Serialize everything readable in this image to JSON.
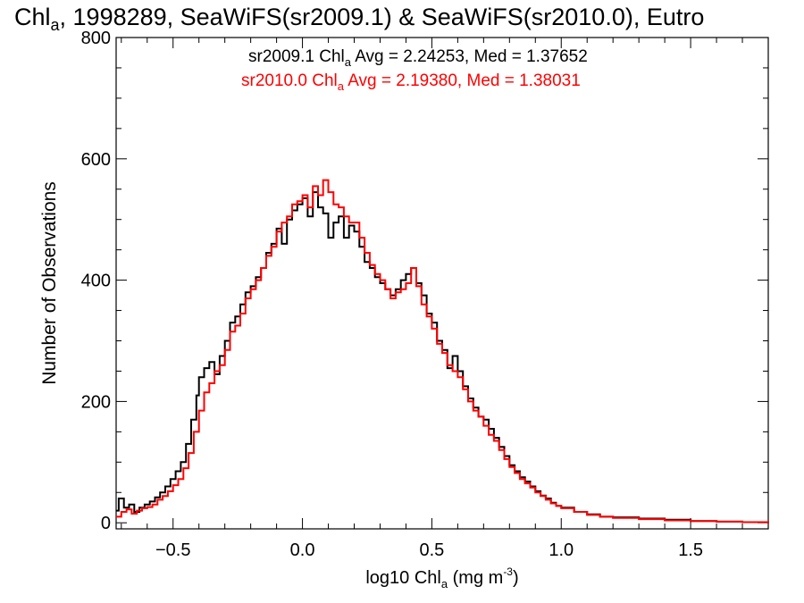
{
  "chart_data": {
    "type": "line",
    "title": {
      "pre": "Chl",
      "sub": "a",
      "post": ", 1998289, SeaWiFS(sr2009.1) & SeaWiFS(sr2010.0), Eutro"
    },
    "xlabel": {
      "pre": "log10 Chl",
      "sub": "a",
      "mid": " (mg m",
      "sup": "-3",
      "post": ")"
    },
    "ylabel": "Number of Observations",
    "xlim": [
      -0.72,
      1.8
    ],
    "ylim": [
      -10,
      800
    ],
    "xticks": [
      {
        "value": -0.5,
        "label": "−0.5"
      },
      {
        "value": 0.0,
        "label": "0.0"
      },
      {
        "value": 0.5,
        "label": "0.5"
      },
      {
        "value": 1.0,
        "label": "1.0"
      },
      {
        "value": 1.5,
        "label": "1.5"
      }
    ],
    "yticks": [
      {
        "value": 0,
        "label": "0"
      },
      {
        "value": 200,
        "label": "200"
      },
      {
        "value": 400,
        "label": "400"
      },
      {
        "value": 600,
        "label": "600"
      },
      {
        "value": 800,
        "label": "800"
      }
    ],
    "grid": false,
    "legend_position": "top-center",
    "series": [
      {
        "name": "sr2009.1",
        "color": "#000000",
        "annotation": {
          "pre": "sr2009.1 Chl",
          "sub": "a",
          "post": " Avg = 2.24253, Med = 1.37652"
        },
        "points": [
          [
            -0.72,
            20
          ],
          [
            -0.71,
            40
          ],
          [
            -0.69,
            25
          ],
          [
            -0.67,
            30
          ],
          [
            -0.65,
            18
          ],
          [
            -0.63,
            25
          ],
          [
            -0.61,
            30
          ],
          [
            -0.59,
            35
          ],
          [
            -0.57,
            42
          ],
          [
            -0.55,
            50
          ],
          [
            -0.53,
            60
          ],
          [
            -0.51,
            72
          ],
          [
            -0.49,
            85
          ],
          [
            -0.47,
            100
          ],
          [
            -0.45,
            130
          ],
          [
            -0.43,
            170
          ],
          [
            -0.41,
            210
          ],
          [
            -0.4,
            240
          ],
          [
            -0.38,
            255
          ],
          [
            -0.36,
            265
          ],
          [
            -0.34,
            245
          ],
          [
            -0.32,
            275
          ],
          [
            -0.3,
            300
          ],
          [
            -0.28,
            330
          ],
          [
            -0.26,
            340
          ],
          [
            -0.24,
            360
          ],
          [
            -0.22,
            380
          ],
          [
            -0.2,
            390
          ],
          [
            -0.18,
            405
          ],
          [
            -0.16,
            420
          ],
          [
            -0.14,
            445
          ],
          [
            -0.12,
            460
          ],
          [
            -0.1,
            485
          ],
          [
            -0.08,
            460
          ],
          [
            -0.06,
            500
          ],
          [
            -0.04,
            515
          ],
          [
            -0.02,
            525
          ],
          [
            0.0,
            535
          ],
          [
            0.02,
            505
          ],
          [
            0.04,
            545
          ],
          [
            0.06,
            520
          ],
          [
            0.08,
            510
          ],
          [
            0.1,
            470
          ],
          [
            0.12,
            495
          ],
          [
            0.14,
            505
          ],
          [
            0.16,
            470
          ],
          [
            0.18,
            490
          ],
          [
            0.2,
            480
          ],
          [
            0.22,
            455
          ],
          [
            0.24,
            430
          ],
          [
            0.26,
            420
          ],
          [
            0.28,
            405
          ],
          [
            0.3,
            395
          ],
          [
            0.32,
            385
          ],
          [
            0.34,
            375
          ],
          [
            0.36,
            385
          ],
          [
            0.38,
            400
          ],
          [
            0.4,
            410
          ],
          [
            0.42,
            420
          ],
          [
            0.44,
            395
          ],
          [
            0.46,
            375
          ],
          [
            0.48,
            345
          ],
          [
            0.5,
            330
          ],
          [
            0.52,
            300
          ],
          [
            0.54,
            285
          ],
          [
            0.56,
            255
          ],
          [
            0.58,
            275
          ],
          [
            0.6,
            250
          ],
          [
            0.62,
            225
          ],
          [
            0.64,
            205
          ],
          [
            0.66,
            190
          ],
          [
            0.68,
            175
          ],
          [
            0.7,
            170
          ],
          [
            0.72,
            155
          ],
          [
            0.74,
            140
          ],
          [
            0.76,
            125
          ],
          [
            0.78,
            110
          ],
          [
            0.8,
            95
          ],
          [
            0.82,
            85
          ],
          [
            0.84,
            75
          ],
          [
            0.86,
            68
          ],
          [
            0.88,
            60
          ],
          [
            0.9,
            52
          ],
          [
            0.92,
            45
          ],
          [
            0.94,
            40
          ],
          [
            0.96,
            33
          ],
          [
            0.98,
            28
          ],
          [
            1.0,
            25
          ],
          [
            1.05,
            18
          ],
          [
            1.1,
            14
          ],
          [
            1.15,
            10
          ],
          [
            1.2,
            9
          ],
          [
            1.3,
            7
          ],
          [
            1.4,
            5
          ],
          [
            1.5,
            3
          ],
          [
            1.6,
            2
          ],
          [
            1.7,
            1
          ],
          [
            1.8,
            0
          ]
        ]
      },
      {
        "name": "sr2010.0",
        "color": "#ff0000",
        "annotation": {
          "pre": "sr2010.0 Chl",
          "sub": "a",
          "post": " Avg = 2.19380, Med = 1.38031"
        },
        "points": [
          [
            -0.72,
            10
          ],
          [
            -0.7,
            18
          ],
          [
            -0.68,
            22
          ],
          [
            -0.66,
            15
          ],
          [
            -0.64,
            20
          ],
          [
            -0.62,
            24
          ],
          [
            -0.6,
            26
          ],
          [
            -0.58,
            30
          ],
          [
            -0.56,
            38
          ],
          [
            -0.54,
            44
          ],
          [
            -0.52,
            52
          ],
          [
            -0.5,
            62
          ],
          [
            -0.48,
            72
          ],
          [
            -0.46,
            90
          ],
          [
            -0.44,
            115
          ],
          [
            -0.42,
            150
          ],
          [
            -0.4,
            185
          ],
          [
            -0.38,
            215
          ],
          [
            -0.36,
            230
          ],
          [
            -0.34,
            250
          ],
          [
            -0.32,
            260
          ],
          [
            -0.3,
            285
          ],
          [
            -0.28,
            315
          ],
          [
            -0.26,
            325
          ],
          [
            -0.24,
            345
          ],
          [
            -0.22,
            370
          ],
          [
            -0.2,
            385
          ],
          [
            -0.18,
            400
          ],
          [
            -0.16,
            420
          ],
          [
            -0.14,
            440
          ],
          [
            -0.12,
            455
          ],
          [
            -0.1,
            480
          ],
          [
            -0.08,
            495
          ],
          [
            -0.06,
            505
          ],
          [
            -0.04,
            525
          ],
          [
            -0.02,
            530
          ],
          [
            0.0,
            540
          ],
          [
            0.02,
            520
          ],
          [
            0.04,
            555
          ],
          [
            0.06,
            540
          ],
          [
            0.08,
            565
          ],
          [
            0.1,
            545
          ],
          [
            0.12,
            525
          ],
          [
            0.14,
            520
          ],
          [
            0.16,
            505
          ],
          [
            0.18,
            495
          ],
          [
            0.2,
            495
          ],
          [
            0.22,
            470
          ],
          [
            0.24,
            445
          ],
          [
            0.26,
            425
          ],
          [
            0.28,
            410
          ],
          [
            0.3,
            400
          ],
          [
            0.32,
            385
          ],
          [
            0.34,
            370
          ],
          [
            0.36,
            380
          ],
          [
            0.38,
            385
          ],
          [
            0.4,
            395
          ],
          [
            0.42,
            420
          ],
          [
            0.44,
            390
          ],
          [
            0.46,
            360
          ],
          [
            0.48,
            340
          ],
          [
            0.5,
            320
          ],
          [
            0.52,
            295
          ],
          [
            0.54,
            280
          ],
          [
            0.56,
            260
          ],
          [
            0.58,
            250
          ],
          [
            0.6,
            240
          ],
          [
            0.62,
            220
          ],
          [
            0.64,
            200
          ],
          [
            0.66,
            185
          ],
          [
            0.68,
            175
          ],
          [
            0.7,
            160
          ],
          [
            0.72,
            145
          ],
          [
            0.74,
            135
          ],
          [
            0.76,
            120
          ],
          [
            0.78,
            105
          ],
          [
            0.8,
            92
          ],
          [
            0.82,
            82
          ],
          [
            0.84,
            72
          ],
          [
            0.86,
            65
          ],
          [
            0.88,
            58
          ],
          [
            0.9,
            50
          ],
          [
            0.92,
            44
          ],
          [
            0.94,
            38
          ],
          [
            0.96,
            32
          ],
          [
            0.98,
            28
          ],
          [
            1.0,
            24
          ],
          [
            1.05,
            18
          ],
          [
            1.1,
            13
          ],
          [
            1.15,
            10
          ],
          [
            1.2,
            8
          ],
          [
            1.3,
            6
          ],
          [
            1.4,
            4
          ],
          [
            1.5,
            3
          ],
          [
            1.6,
            2
          ],
          [
            1.7,
            1
          ],
          [
            1.8,
            0
          ]
        ]
      }
    ]
  }
}
